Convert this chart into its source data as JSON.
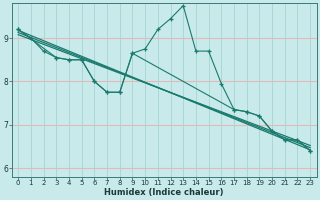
{
  "title": "",
  "xlabel": "Humidex (Indice chaleur)",
  "bg_color": "#c8eaea",
  "line_color": "#1a7a6e",
  "h_grid_color": "#e8b8b8",
  "v_grid_color": "#a8d4d4",
  "xlim": [
    -0.5,
    23.5
  ],
  "ylim": [
    5.8,
    9.8
  ],
  "yticks": [
    6,
    7,
    8,
    9
  ],
  "xticks": [
    0,
    1,
    2,
    3,
    4,
    5,
    6,
    7,
    8,
    9,
    10,
    11,
    12,
    13,
    14,
    15,
    16,
    17,
    18,
    19,
    20,
    21,
    22,
    23
  ],
  "line1_x": [
    0,
    1,
    2,
    3,
    4,
    5,
    6,
    7,
    8,
    9,
    10,
    11,
    12,
    13,
    14,
    15,
    16,
    17,
    18,
    19,
    20,
    21,
    22,
    23
  ],
  "line1_y": [
    9.2,
    9.0,
    8.7,
    8.55,
    8.5,
    8.5,
    8.0,
    7.75,
    7.75,
    8.65,
    8.75,
    9.2,
    9.45,
    9.75,
    8.7,
    8.7,
    7.95,
    7.35,
    7.3,
    7.2,
    6.85,
    6.65,
    6.65,
    6.4
  ],
  "line2_x": [
    0,
    3,
    4,
    5,
    6,
    7,
    8,
    9,
    17,
    18,
    19,
    20,
    21,
    22,
    23
  ],
  "line2_y": [
    9.2,
    8.55,
    8.5,
    8.5,
    8.0,
    7.75,
    7.75,
    8.65,
    7.35,
    7.3,
    7.2,
    6.85,
    6.65,
    6.65,
    6.4
  ],
  "line3_x": [
    0,
    23
  ],
  "line3_y": [
    9.18,
    6.42
  ],
  "line4_x": [
    0,
    23
  ],
  "line4_y": [
    9.13,
    6.47
  ],
  "line5_x": [
    0,
    23
  ],
  "line5_y": [
    9.08,
    6.52
  ]
}
